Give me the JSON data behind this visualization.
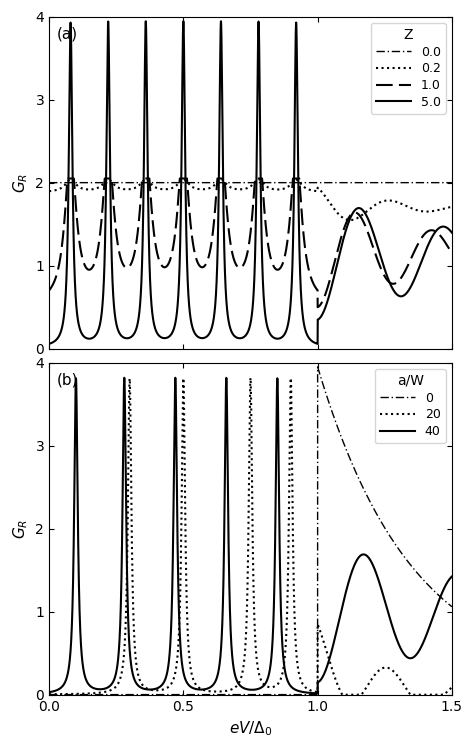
{
  "title_a": "(a)",
  "title_b": "(b)",
  "xlabel": "$eV/\\Delta_0$",
  "ylabel": "$G_R$",
  "xlim": [
    0.0,
    1.5
  ],
  "ylim_a": [
    0.0,
    4.0
  ],
  "ylim_b": [
    0.0,
    4.0
  ],
  "yticks": [
    0,
    1,
    2,
    3,
    4
  ],
  "xticks": [
    0.0,
    0.5,
    1.0,
    1.5
  ],
  "xtick_labels": [
    "0.0",
    "0.5",
    "1.0",
    "1.5"
  ],
  "legend_a_title": "Z",
  "legend_a_labels": [
    "0.0",
    "0.2",
    "1.0",
    "5.0"
  ],
  "legend_b_title": "a/W",
  "legend_b_labels": [
    "0",
    "20",
    "40"
  ],
  "background_color": "#ffffff",
  "line_color": "#000000"
}
